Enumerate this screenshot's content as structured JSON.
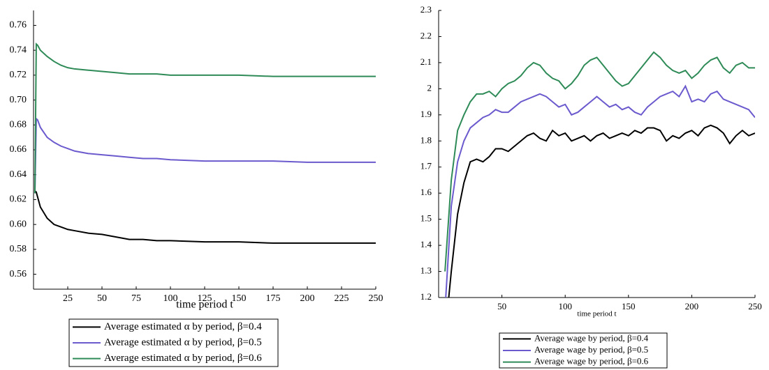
{
  "chart_data": [
    {
      "type": "line",
      "x_label": "time period t",
      "x": [
        1,
        2,
        3,
        5,
        10,
        15,
        20,
        25,
        30,
        40,
        50,
        60,
        70,
        80,
        90,
        100,
        125,
        150,
        175,
        200,
        225,
        250
      ],
      "xlim": [
        0,
        250
      ],
      "xticks": [
        25,
        50,
        75,
        100,
        125,
        150,
        175,
        200,
        225,
        250
      ],
      "ylim": [
        0.548,
        0.772
      ],
      "yticks": [
        0.56,
        0.58,
        {
          "value": 0.6,
          "label": "0.60"
        },
        0.62,
        0.64,
        0.66,
        0.68,
        {
          "value": 0.7,
          "label": "0.70"
        },
        0.72,
        0.74,
        0.76
      ],
      "series": [
        {
          "name": "Average estimated α by period, β=0.4",
          "color": "#000000",
          "values": [
            0.627,
            0.626,
            0.622,
            0.614,
            0.605,
            0.6,
            0.598,
            0.596,
            0.595,
            0.593,
            0.592,
            0.59,
            0.588,
            0.588,
            0.587,
            0.587,
            0.586,
            0.586,
            0.585,
            0.585,
            0.585,
            0.585
          ]
        },
        {
          "name": "Average estimated α by period, β=0.5",
          "color": "#6a5acd",
          "values": [
            0.625,
            0.685,
            0.684,
            0.678,
            0.67,
            0.666,
            0.663,
            0.661,
            0.659,
            0.657,
            0.656,
            0.655,
            0.654,
            0.653,
            0.653,
            0.652,
            0.651,
            0.651,
            0.651,
            0.65,
            0.65,
            0.65
          ]
        },
        {
          "name": "Average estimated α by period, β=0.6",
          "color": "#2e8b57",
          "values": [
            0.625,
            0.745,
            0.744,
            0.74,
            0.735,
            0.731,
            0.728,
            0.726,
            0.725,
            0.724,
            0.723,
            0.722,
            0.721,
            0.721,
            0.721,
            0.72,
            0.72,
            0.72,
            0.719,
            0.719,
            0.719,
            0.719
          ]
        }
      ]
    },
    {
      "type": "line",
      "x_label": "time period t",
      "x": [
        5,
        10,
        15,
        20,
        25,
        30,
        35,
        40,
        45,
        50,
        55,
        60,
        65,
        70,
        75,
        80,
        85,
        90,
        95,
        100,
        105,
        110,
        115,
        120,
        125,
        130,
        135,
        140,
        145,
        150,
        155,
        160,
        165,
        170,
        175,
        180,
        185,
        190,
        195,
        200,
        205,
        210,
        215,
        220,
        225,
        230,
        235,
        240,
        245,
        250
      ],
      "xlim": [
        0,
        250
      ],
      "xticks": [
        50,
        100,
        150,
        200,
        250
      ],
      "ylim": [
        1.2,
        2.3
      ],
      "yticks": [
        1.2,
        1.3,
        1.4,
        1.5,
        1.6,
        1.7,
        1.8,
        1.9,
        2,
        2.1,
        2.2,
        2.3
      ],
      "series": [
        {
          "name": "Average wage by period, β=0.4",
          "color": "#000000",
          "values": [
            1.05,
            1.3,
            1.52,
            1.64,
            1.72,
            1.73,
            1.72,
            1.74,
            1.77,
            1.77,
            1.76,
            1.78,
            1.8,
            1.82,
            1.83,
            1.81,
            1.8,
            1.84,
            1.82,
            1.83,
            1.8,
            1.81,
            1.82,
            1.8,
            1.82,
            1.83,
            1.81,
            1.82,
            1.83,
            1.82,
            1.84,
            1.83,
            1.85,
            1.85,
            1.84,
            1.8,
            1.82,
            1.81,
            1.83,
            1.84,
            1.82,
            1.85,
            1.86,
            1.85,
            1.83,
            1.79,
            1.82,
            1.84,
            1.82,
            1.83
          ]
        },
        {
          "name": "Average wage by period, β=0.5",
          "color": "#6a5acd",
          "values": [
            1.15,
            1.55,
            1.72,
            1.8,
            1.85,
            1.87,
            1.89,
            1.9,
            1.92,
            1.91,
            1.91,
            1.93,
            1.95,
            1.96,
            1.97,
            1.98,
            1.97,
            1.95,
            1.93,
            1.94,
            1.9,
            1.91,
            1.93,
            1.95,
            1.97,
            1.95,
            1.93,
            1.94,
            1.92,
            1.93,
            1.91,
            1.9,
            1.93,
            1.95,
            1.97,
            1.98,
            1.99,
            1.97,
            2.01,
            1.95,
            1.96,
            1.95,
            1.98,
            1.99,
            1.96,
            1.95,
            1.94,
            1.93,
            1.92,
            1.89
          ]
        },
        {
          "name": "Average wage by period, β=0.6",
          "color": "#2e8b57",
          "values": [
            1.3,
            1.65,
            1.84,
            1.9,
            1.95,
            1.98,
            1.98,
            1.99,
            1.97,
            2,
            2.02,
            2.03,
            2.05,
            2.08,
            2.1,
            2.09,
            2.06,
            2.04,
            2.03,
            2,
            2.02,
            2.05,
            2.09,
            2.11,
            2.12,
            2.09,
            2.06,
            2.03,
            2.01,
            2.02,
            2.05,
            2.08,
            2.11,
            2.14,
            2.12,
            2.09,
            2.07,
            2.06,
            2.07,
            2.04,
            2.06,
            2.09,
            2.11,
            2.12,
            2.08,
            2.06,
            2.09,
            2.1,
            2.08,
            2.08
          ]
        }
      ]
    }
  ]
}
